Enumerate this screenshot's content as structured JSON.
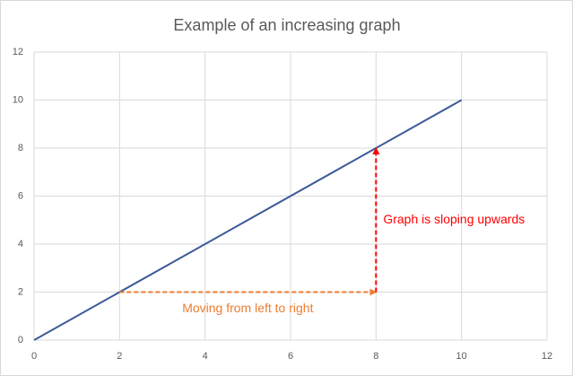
{
  "chart_data": {
    "type": "line",
    "title": "Example of an increasing graph",
    "x": [
      0,
      10
    ],
    "series": [
      {
        "name": "y",
        "color": "#3b5a99",
        "values": [
          0,
          10
        ]
      }
    ],
    "xlim": [
      0,
      12
    ],
    "xticks": [
      0,
      2,
      4,
      6,
      8,
      10,
      12
    ],
    "ylim": [
      0,
      12
    ],
    "yticks": [
      0,
      2,
      4,
      6,
      8,
      10,
      12
    ],
    "grid": true,
    "annotations": [
      {
        "text": "Moving from left to right",
        "color": "#ed7d31",
        "from": [
          2,
          2
        ],
        "to": [
          8,
          2
        ]
      },
      {
        "text": "Graph is sloping upwards",
        "color": "#ff0000",
        "from": [
          8,
          2
        ],
        "to": [
          8,
          8
        ]
      }
    ]
  }
}
